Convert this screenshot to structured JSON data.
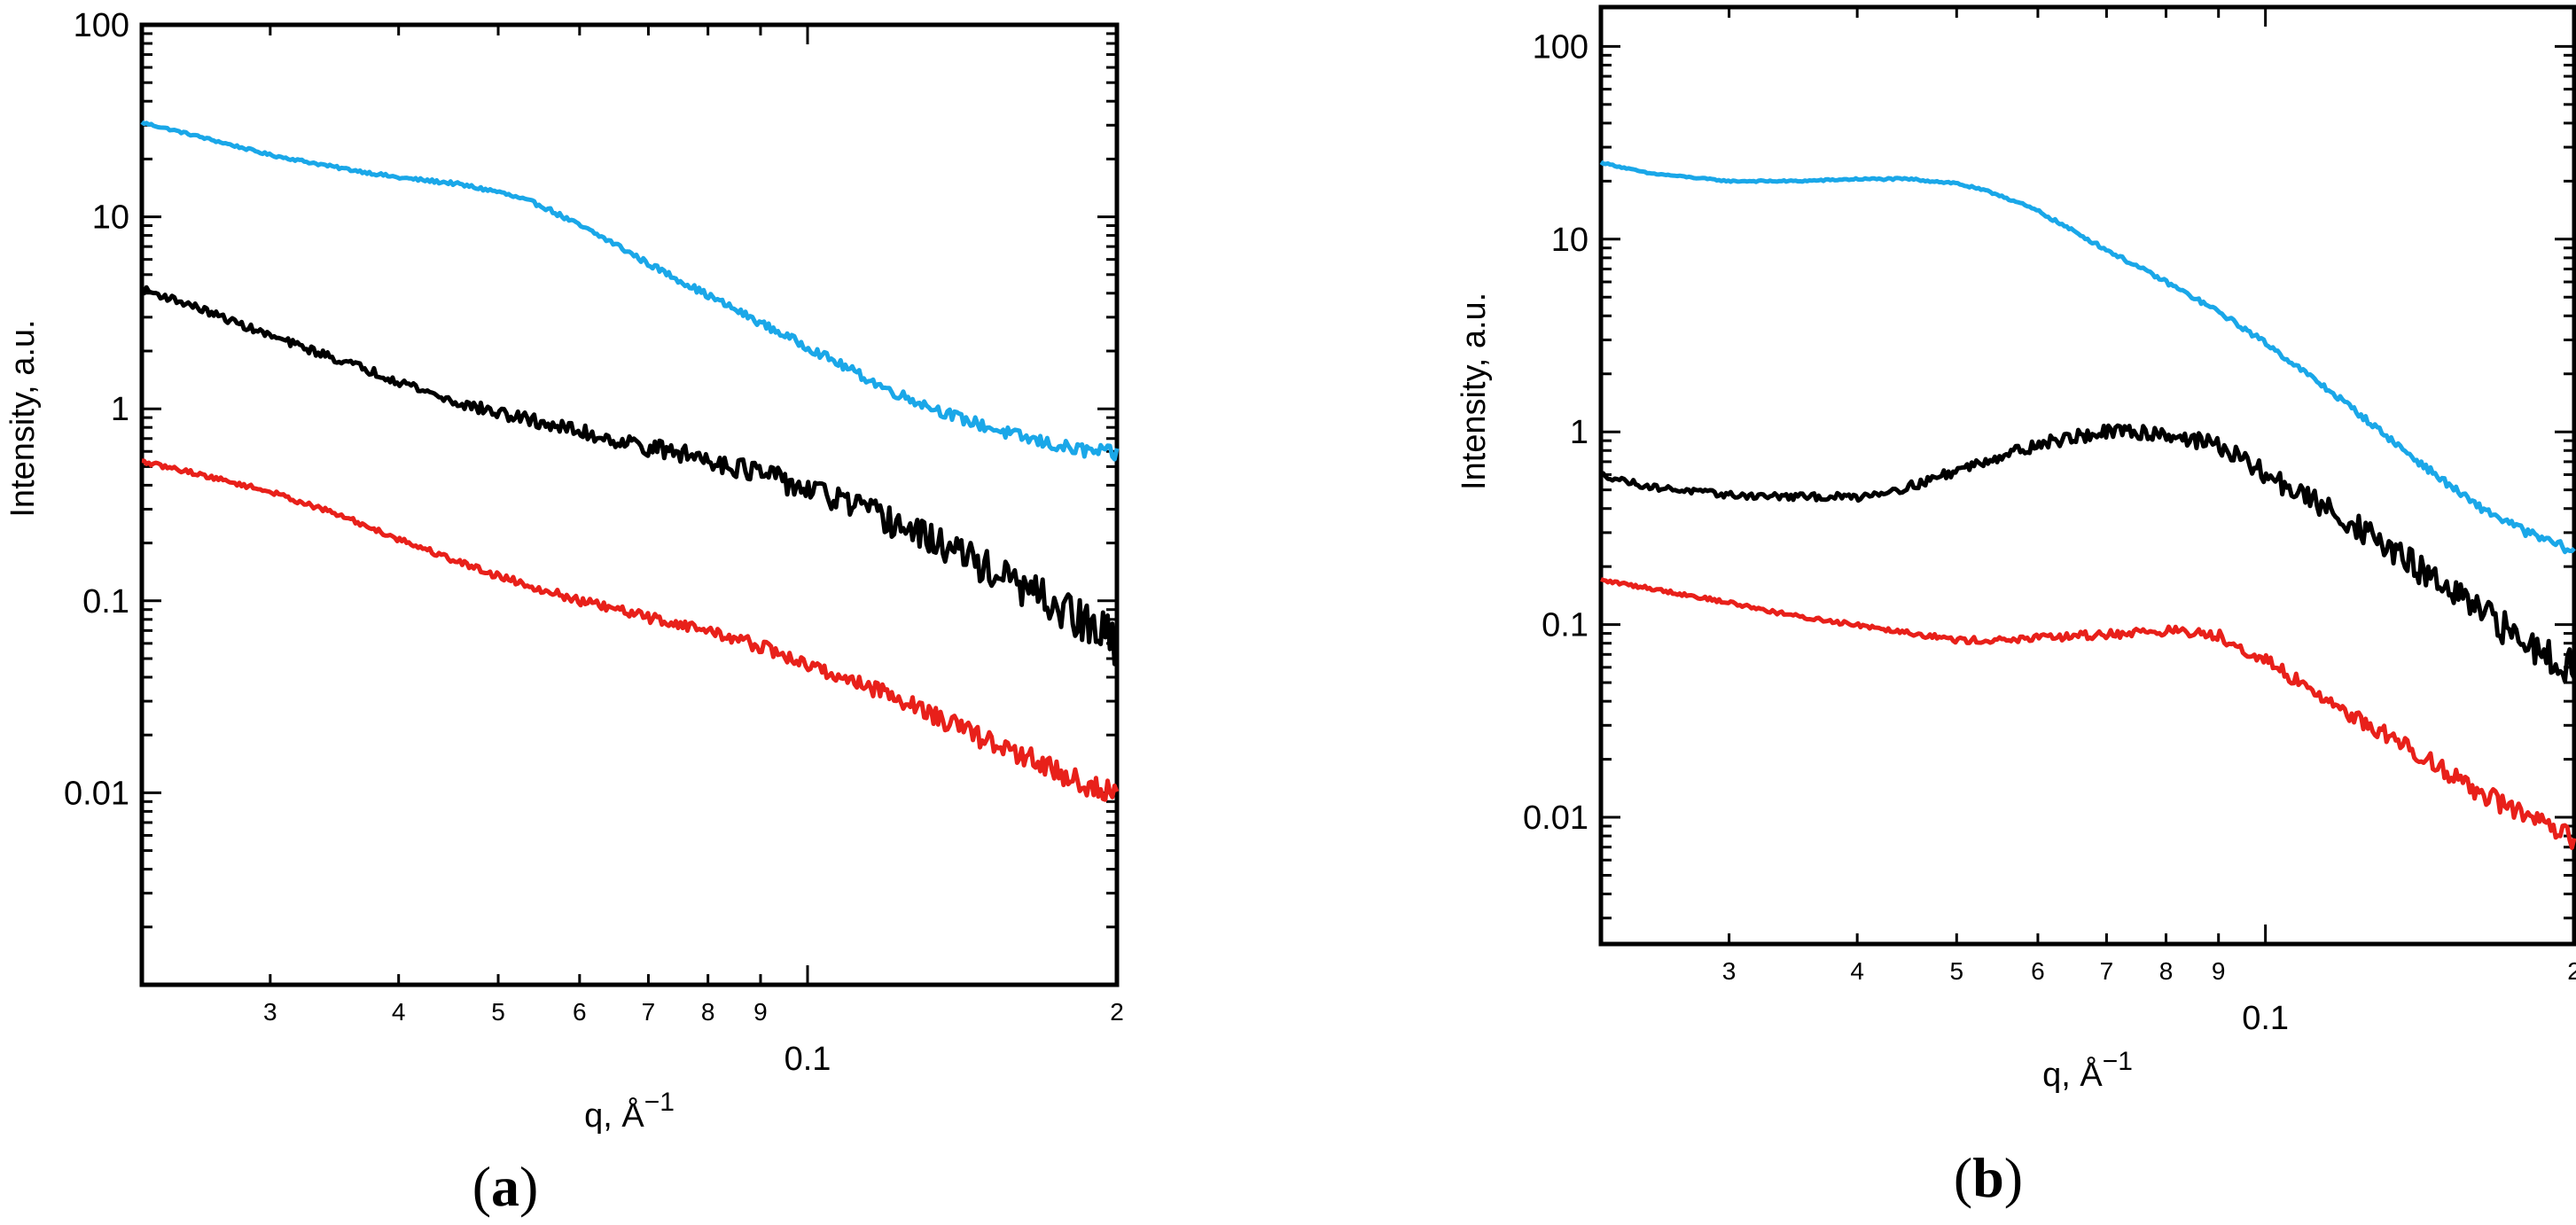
{
  "chart_data": [
    {
      "type": "line",
      "panel_label": "a",
      "xscale": "log",
      "yscale": "log",
      "xlabel": "q, Å",
      "xlabel_exponent": "−1",
      "ylabel": "Intensity, a.u.",
      "xlim": [
        0.0225,
        0.2
      ],
      "ylim": [
        0.001,
        100
      ],
      "y_ticks": [
        {
          "value": 100,
          "label": "100"
        },
        {
          "value": 10,
          "label": "10"
        },
        {
          "value": 1,
          "label": "1"
        },
        {
          "value": 0.1,
          "label": "0.1"
        },
        {
          "value": 0.01,
          "label": "0.01"
        }
      ],
      "x_ticks_minor": [
        {
          "value": 0.03,
          "label": "3"
        },
        {
          "value": 0.04,
          "label": "4"
        },
        {
          "value": 0.05,
          "label": "5"
        },
        {
          "value": 0.06,
          "label": "6"
        },
        {
          "value": 0.07,
          "label": "7"
        },
        {
          "value": 0.08,
          "label": "8"
        },
        {
          "value": 0.09,
          "label": "9"
        },
        {
          "value": 0.2,
          "label": "2"
        }
      ],
      "x_ticks_major": [
        {
          "value": 0.1,
          "label": "0.1"
        }
      ],
      "series": [
        {
          "name": "blue",
          "color": "#1aa7e8",
          "noise": 0.02,
          "x": [
            0.0225,
            0.025,
            0.03,
            0.035,
            0.04,
            0.045,
            0.05,
            0.055,
            0.06,
            0.065,
            0.07,
            0.08,
            0.09,
            0.1,
            0.11,
            0.12,
            0.14,
            0.16,
            0.18,
            0.2
          ],
          "y": [
            31,
            27,
            21,
            18,
            16,
            15,
            13.5,
            11.5,
            9,
            7.2,
            5.7,
            3.9,
            2.8,
            2.1,
            1.6,
            1.25,
            0.9,
            0.72,
            0.62,
            0.58
          ]
        },
        {
          "name": "black",
          "color": "#000000",
          "noise": 0.06,
          "x": [
            0.0225,
            0.025,
            0.03,
            0.035,
            0.04,
            0.045,
            0.05,
            0.055,
            0.06,
            0.07,
            0.08,
            0.09,
            0.1,
            0.11,
            0.12,
            0.14,
            0.16,
            0.18,
            0.2
          ],
          "y": [
            4.2,
            3.5,
            2.4,
            1.8,
            1.4,
            1.1,
            0.95,
            0.85,
            0.76,
            0.63,
            0.55,
            0.46,
            0.38,
            0.32,
            0.26,
            0.18,
            0.12,
            0.085,
            0.06
          ]
        },
        {
          "name": "red",
          "color": "#e8201a",
          "noise": 0.035,
          "x": [
            0.0225,
            0.025,
            0.03,
            0.035,
            0.04,
            0.045,
            0.05,
            0.06,
            0.07,
            0.08,
            0.09,
            0.1,
            0.12,
            0.14,
            0.16,
            0.18,
            0.2
          ],
          "y": [
            0.53,
            0.47,
            0.37,
            0.28,
            0.21,
            0.165,
            0.135,
            0.1,
            0.082,
            0.07,
            0.058,
            0.046,
            0.033,
            0.022,
            0.016,
            0.012,
            0.0095
          ]
        }
      ]
    },
    {
      "type": "line",
      "panel_label": "b",
      "xscale": "log",
      "yscale": "log",
      "xlabel": "q, Å",
      "xlabel_exponent": "−1",
      "ylabel": "Intensity, a.u.",
      "xlim": [
        0.0225,
        0.2
      ],
      "ylim": [
        0.0022,
        160
      ],
      "y_ticks": [
        {
          "value": 100,
          "label": "100"
        },
        {
          "value": 10,
          "label": "10"
        },
        {
          "value": 1,
          "label": "1"
        },
        {
          "value": 0.1,
          "label": "0.1"
        },
        {
          "value": 0.01,
          "label": "0.01"
        }
      ],
      "x_ticks_minor": [
        {
          "value": 0.03,
          "label": "3"
        },
        {
          "value": 0.04,
          "label": "4"
        },
        {
          "value": 0.05,
          "label": "5"
        },
        {
          "value": 0.06,
          "label": "6"
        },
        {
          "value": 0.07,
          "label": "7"
        },
        {
          "value": 0.08,
          "label": "8"
        },
        {
          "value": 0.09,
          "label": "9"
        },
        {
          "value": 0.2,
          "label": "2"
        }
      ],
      "x_ticks_major": [
        {
          "value": 0.1,
          "label": "0.1"
        }
      ],
      "series": [
        {
          "name": "blue",
          "color": "#1aa7e8",
          "noise": 0.012,
          "x": [
            0.0225,
            0.025,
            0.03,
            0.035,
            0.04,
            0.045,
            0.05,
            0.055,
            0.06,
            0.065,
            0.07,
            0.08,
            0.09,
            0.1,
            0.12,
            0.14,
            0.16,
            0.18,
            0.2
          ],
          "y": [
            25,
            22,
            20,
            20,
            20.5,
            20.5,
            19.5,
            17,
            14,
            11,
            8.8,
            6,
            4.2,
            2.9,
            1.4,
            0.72,
            0.42,
            0.3,
            0.24
          ]
        },
        {
          "name": "black",
          "color": "#000000",
          "noise": 0.05,
          "x": [
            0.0225,
            0.025,
            0.03,
            0.035,
            0.04,
            0.045,
            0.05,
            0.055,
            0.06,
            0.065,
            0.07,
            0.075,
            0.08,
            0.09,
            0.1,
            0.12,
            0.14,
            0.16,
            0.18,
            0.2
          ],
          "y": [
            0.6,
            0.52,
            0.47,
            0.46,
            0.46,
            0.52,
            0.63,
            0.75,
            0.86,
            0.94,
            0.99,
            1.0,
            0.98,
            0.85,
            0.6,
            0.35,
            0.2,
            0.12,
            0.08,
            0.06
          ]
        },
        {
          "name": "red",
          "color": "#e8201a",
          "noise": 0.03,
          "x": [
            0.0225,
            0.025,
            0.03,
            0.035,
            0.04,
            0.045,
            0.05,
            0.055,
            0.06,
            0.07,
            0.08,
            0.09,
            0.1,
            0.12,
            0.14,
            0.16,
            0.18,
            0.2
          ],
          "y": [
            0.17,
            0.155,
            0.13,
            0.11,
            0.1,
            0.091,
            0.083,
            0.083,
            0.085,
            0.089,
            0.093,
            0.088,
            0.065,
            0.035,
            0.022,
            0.014,
            0.01,
            0.0075
          ]
        }
      ]
    }
  ]
}
